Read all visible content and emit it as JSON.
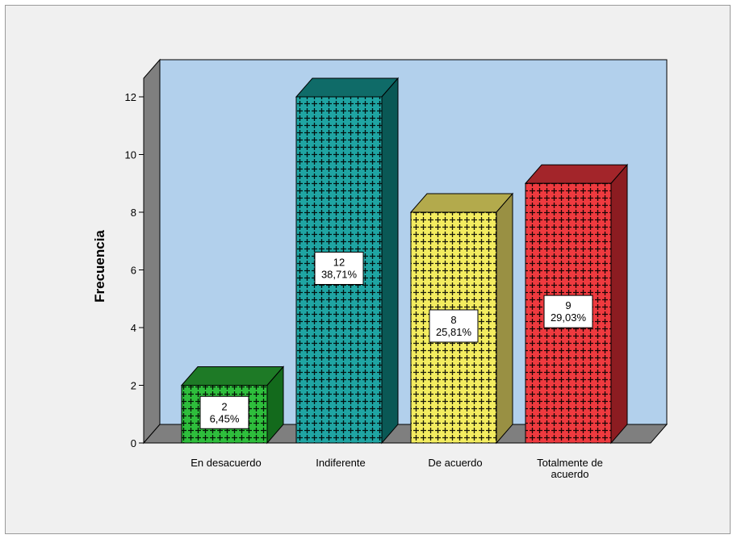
{
  "chart_data": {
    "type": "bar",
    "title": "",
    "xlabel": "",
    "ylabel": "Frecuencia",
    "ylim": [
      0,
      12
    ],
    "yticks": [
      "0",
      "2",
      "4",
      "6",
      "8",
      "10",
      "12"
    ],
    "grid": false,
    "legend": "none",
    "style": "3d-bar",
    "categories": [
      [
        "En desacuerdo"
      ],
      [
        "Indiferente"
      ],
      [
        "De acuerdo"
      ],
      [
        "Totalmente de",
        "acuerdo"
      ]
    ],
    "values": [
      2,
      12,
      8,
      9
    ],
    "percents": [
      "6,45%",
      "38,71%",
      "25,81%",
      "29,03%"
    ],
    "colors": {
      "fronts": [
        "#2ebe3c",
        "#1fa5a3",
        "#f4ed60",
        "#ef3a3f"
      ],
      "tops": [
        "#1e7a26",
        "#0f6b68",
        "#b3aa4c",
        "#a3252a"
      ],
      "sides": [
        "#136a1c",
        "#0a5855",
        "#999043",
        "#8c1c21"
      ],
      "plot_back": "#b2d0ec",
      "floor": "#7f7f7f",
      "background": "#f0f0f0"
    }
  }
}
